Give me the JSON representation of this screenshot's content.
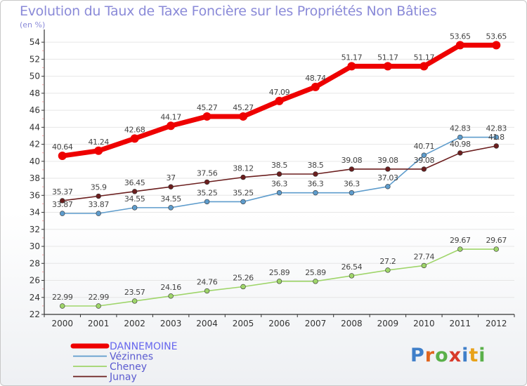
{
  "header": {
    "title": "Evolution du Taux de Taxe Foncière sur les Propriétés Non Bâties",
    "unit": "(en %)"
  },
  "logo": {
    "text": "Proxiti",
    "letter_colors": [
      "#3f7fc9",
      "#e0651e",
      "#5ab04a",
      "#d83a2a",
      "#3f7fc9",
      "#e8a21a",
      "#5ab04a"
    ]
  },
  "colors": {
    "DANNEMOINE": "#ee0000",
    "Vézinnes": "#5e9ccc",
    "Cheney": "#9fd56a",
    "Junay": "#6b1e1e",
    "axis": "#333333",
    "grid": "#e6e6e6",
    "legend_first": "#6666ee"
  },
  "chart_data": {
    "type": "line",
    "title": "Evolution du Taux de Taxe Foncière sur les Propriétés Non Bâties",
    "ylabel": "(en %)",
    "xlabel": "",
    "ylim": [
      22,
      55
    ],
    "yticks": [
      22,
      24,
      26,
      28,
      30,
      32,
      34,
      36,
      38,
      40,
      42,
      44,
      46,
      48,
      50,
      52,
      54
    ],
    "categories": [
      "2000",
      "2001",
      "2002",
      "2003",
      "2004",
      "2005",
      "2006",
      "2007",
      "2008",
      "2009",
      "2010",
      "2011",
      "2012"
    ],
    "legend_position": "bottom-left",
    "series": [
      {
        "name": "DANNEMOINE",
        "values": [
          40.64,
          41.24,
          42.68,
          44.17,
          45.27,
          45.27,
          47.09,
          48.74,
          51.17,
          51.17,
          51.17,
          53.65,
          53.65
        ],
        "labels": [
          "40.64",
          "41.24",
          "42.68",
          "44.17",
          "45.27",
          "45.27",
          "47.09",
          "48.74",
          "51.17",
          "51.17",
          "51.17",
          "53.65",
          "53.65"
        ]
      },
      {
        "name": "Vézinnes",
        "values": [
          33.87,
          33.87,
          34.55,
          34.55,
          35.25,
          35.25,
          36.3,
          36.3,
          36.3,
          37.03,
          40.71,
          42.83,
          42.83
        ],
        "labels": [
          "33.87",
          "33.87",
          "34.55",
          "34.55",
          "35.25",
          "35.25",
          "36.3",
          "36.3",
          "36.3",
          "37.03",
          "40.71",
          "42.83",
          "42.83"
        ]
      },
      {
        "name": "Cheney",
        "values": [
          22.99,
          22.99,
          23.57,
          24.16,
          24.76,
          25.26,
          25.89,
          25.89,
          26.54,
          27.2,
          27.74,
          29.67,
          29.67
        ],
        "labels": [
          "22.99",
          "22.99",
          "23.57",
          "24.16",
          "24.76",
          "25.26",
          "25.89",
          "25.89",
          "26.54",
          "27.2",
          "27.74",
          "29.67",
          "29.67"
        ]
      },
      {
        "name": "Junay",
        "values": [
          35.37,
          35.9,
          36.45,
          37,
          37.56,
          38.12,
          38.5,
          38.5,
          39.08,
          39.08,
          39.08,
          40.98,
          41.8
        ],
        "labels": [
          "35.37",
          "35.9",
          "36.45",
          "37",
          "37.56",
          "38.12",
          "38.5",
          "38.5",
          "39.08",
          "39.08",
          "39.08",
          "40.98",
          "41.8"
        ]
      }
    ]
  }
}
